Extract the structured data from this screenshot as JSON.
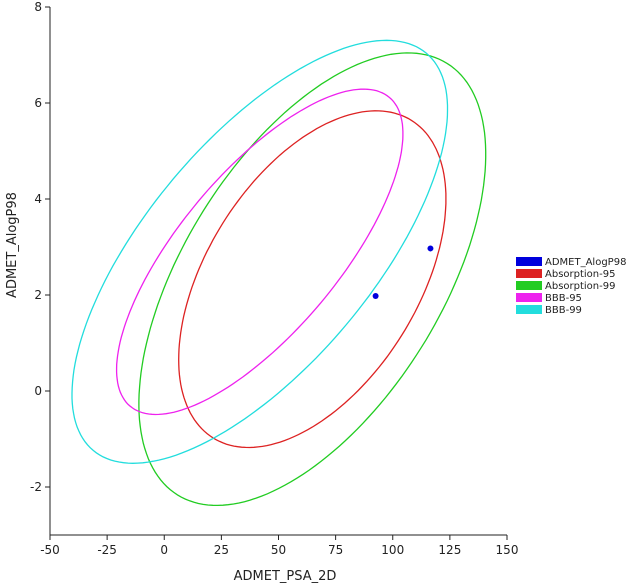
{
  "chart_data": {
    "type": "scatter",
    "xlabel": "ADMET_PSA_2D",
    "ylabel": "ADMET_AlogP98",
    "xlim": [
      -50,
      150
    ],
    "ylim": [
      -3,
      8
    ],
    "x_ticks": [
      -50,
      -25,
      0,
      25,
      50,
      75,
      100,
      125,
      150
    ],
    "y_ticks": [
      -2,
      0,
      2,
      4,
      6,
      8
    ],
    "grid": false,
    "legend_position": "right",
    "points": {
      "name": "ADMET_AlogP98",
      "color": "#0000dd",
      "x": [
        92.5,
        116.5
      ],
      "y": [
        1.98,
        2.97
      ]
    },
    "ellipses": [
      {
        "name": "Absorption-95",
        "color": "#dd2222",
        "cx": 64.8,
        "cy": 2.33,
        "rx": 46.2,
        "ry": 3.9,
        "angle_deg": -32
      },
      {
        "name": "Absorption-99",
        "color": "#22cc22",
        "cx": 64.8,
        "cy": 2.33,
        "rx": 56.3,
        "ry": 5.3,
        "angle_deg": -32
      },
      {
        "name": "BBB-95",
        "color": "#ee22ee",
        "cx": 41.8,
        "cy": 2.9,
        "rx": 34.8,
        "ry": 4.2,
        "angle_deg": -40
      },
      {
        "name": "BBB-99",
        "color": "#22dddd",
        "cx": 41.8,
        "cy": 2.9,
        "rx": 49.5,
        "ry": 5.4,
        "angle_deg": -40
      }
    ]
  }
}
